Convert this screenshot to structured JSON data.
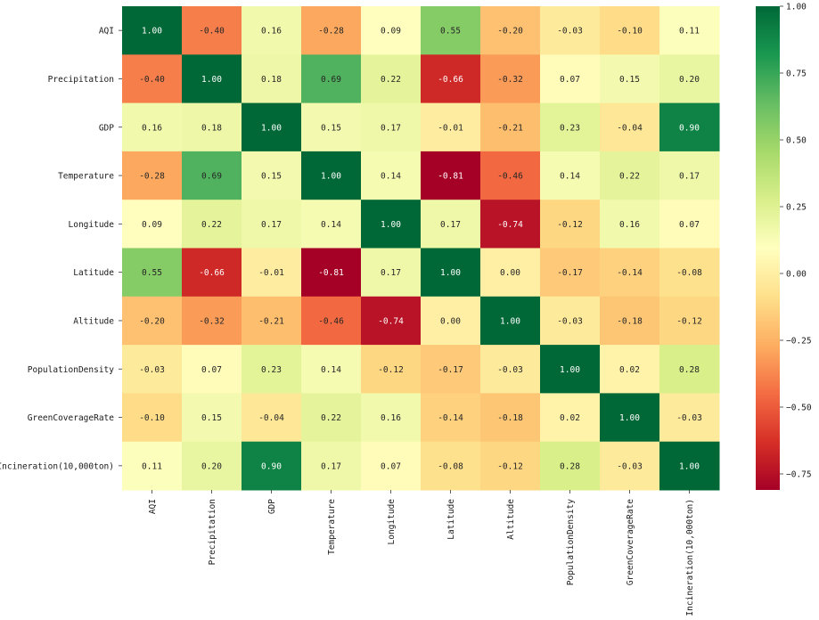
{
  "chart_data": {
    "type": "heatmap",
    "title": "",
    "xlabel": "",
    "ylabel": "",
    "labels": [
      "AQI",
      "Precipitation",
      "GDP",
      "Temperature",
      "Longitude",
      "Latitude",
      "Altitude",
      "PopulationDensity",
      "GreenCoverageRate",
      "Incineration(10,000ton)"
    ],
    "matrix": [
      [
        1.0,
        -0.4,
        0.16,
        -0.28,
        0.09,
        0.55,
        -0.2,
        -0.03,
        -0.1,
        0.11
      ],
      [
        -0.4,
        1.0,
        0.18,
        0.69,
        0.22,
        -0.66,
        -0.32,
        0.07,
        0.15,
        0.2
      ],
      [
        0.16,
        0.18,
        1.0,
        0.15,
        0.17,
        -0.01,
        -0.21,
        0.23,
        -0.04,
        0.9
      ],
      [
        -0.28,
        0.69,
        0.15,
        1.0,
        0.14,
        -0.81,
        -0.46,
        0.14,
        0.22,
        0.17
      ],
      [
        0.09,
        0.22,
        0.17,
        0.14,
        1.0,
        0.17,
        -0.74,
        -0.12,
        0.16,
        0.07
      ],
      [
        0.55,
        -0.66,
        -0.01,
        -0.81,
        0.17,
        1.0,
        0.0,
        -0.17,
        -0.14,
        -0.08
      ],
      [
        -0.2,
        -0.32,
        -0.21,
        -0.46,
        -0.74,
        0.0,
        1.0,
        -0.03,
        -0.18,
        -0.12
      ],
      [
        -0.03,
        0.07,
        0.23,
        0.14,
        -0.12,
        -0.17,
        -0.03,
        1.0,
        0.02,
        0.28
      ],
      [
        -0.1,
        0.15,
        -0.04,
        0.22,
        0.16,
        -0.14,
        -0.18,
        0.02,
        1.0,
        -0.03
      ],
      [
        0.11,
        0.2,
        0.9,
        0.17,
        0.07,
        -0.08,
        -0.12,
        0.28,
        -0.03,
        1.0
      ]
    ],
    "value_format": "2 decimals",
    "colormap": "RdYlGn",
    "colormap_stops": [
      "#a50026",
      "#d73027",
      "#f46d43",
      "#fdae61",
      "#fee08b",
      "#ffffbf",
      "#d9ef8b",
      "#a6d96a",
      "#66bd63",
      "#1a9850",
      "#006837"
    ],
    "vmin": -0.81,
    "vmax": 1.0,
    "colorbar_ticks": [
      1.0,
      0.75,
      0.5,
      0.25,
      0.0,
      -0.25,
      -0.5,
      -0.75
    ],
    "colorbar_tick_labels": [
      "1.00",
      "0.75",
      "0.50",
      "0.25",
      "0.00",
      "−0.25",
      "−0.50",
      "−0.75"
    ],
    "grid": false,
    "legend": "colorbar-right"
  }
}
